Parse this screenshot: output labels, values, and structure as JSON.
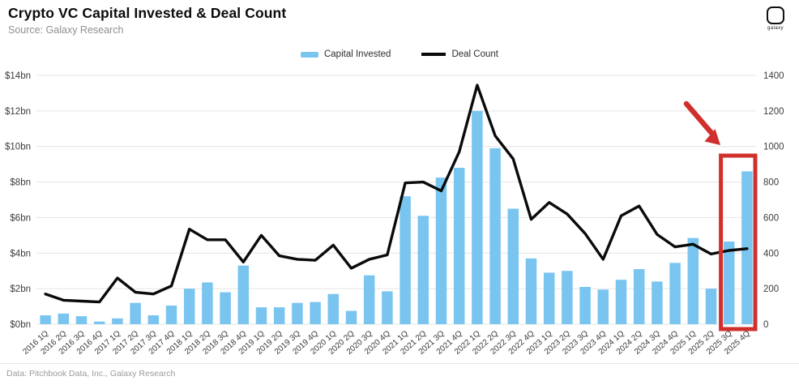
{
  "header": {
    "title": "Crypto VC Capital Invested & Deal Count",
    "source": "Source: Galaxy Research",
    "logo_text": "galaxy"
  },
  "legend": [
    {
      "label": "Capital Invested",
      "swatch": "bar",
      "color": "#79c5f0"
    },
    {
      "label": "Deal Count",
      "swatch": "line",
      "color": "#0a0a0a"
    }
  ],
  "footer": {
    "credit": "Data: Pitchbook Data, Inc., Galaxy Research"
  },
  "colors": {
    "bar": "#79c5f0",
    "line": "#0a0a0a",
    "grid": "#e4e4e4",
    "axis_text": "#3c3c3c",
    "annotation_red": "#d0302c"
  },
  "chart_data": {
    "type": "bar",
    "title": "Crypto VC Capital Invested & Deal Count",
    "categories": [
      "2016 1Q",
      "2016 2Q",
      "2016 3Q",
      "2016 4Q",
      "2017 1Q",
      "2017 2Q",
      "2017 3Q",
      "2017 4Q",
      "2018 1Q",
      "2018 2Q",
      "2018 3Q",
      "2018 4Q",
      "2019 1Q",
      "2019 2Q",
      "2019 3Q",
      "2019 4Q",
      "2020 1Q",
      "2020 2Q",
      "2020 3Q",
      "2020 4Q",
      "2021 1Q",
      "2021 2Q",
      "2021 3Q",
      "2021 4Q",
      "2022 1Q",
      "2022 2Q",
      "2022 3Q",
      "2022 4Q",
      "2023 1Q",
      "2023 2Q",
      "2023 3Q",
      "2023 4Q",
      "2024 1Q",
      "2024 2Q",
      "2024 3Q",
      "2024 4Q",
      "2025 1Q",
      "2025 2Q",
      "2025 3Q",
      "2025 4Q"
    ],
    "series": [
      {
        "name": "Capital Invested",
        "type": "bar",
        "axis": "left",
        "unit": "$bn",
        "color": "#79c5f0",
        "values": [
          0.5,
          0.6,
          0.45,
          0.15,
          0.33,
          1.2,
          0.5,
          1.05,
          2.0,
          2.35,
          1.8,
          3.3,
          0.95,
          0.95,
          1.2,
          1.25,
          1.7,
          0.75,
          2.75,
          1.85,
          7.2,
          6.1,
          8.25,
          8.8,
          12.0,
          9.9,
          6.5,
          3.7,
          2.9,
          3.0,
          2.1,
          1.95,
          2.5,
          3.1,
          2.4,
          3.45,
          4.85,
          2.0,
          4.65,
          8.6
        ]
      },
      {
        "name": "Deal Count",
        "type": "line",
        "axis": "right",
        "unit": "deals",
        "color": "#0a0a0a",
        "values": [
          170,
          135,
          130,
          125,
          260,
          180,
          170,
          215,
          535,
          475,
          475,
          350,
          500,
          385,
          365,
          360,
          445,
          315,
          365,
          390,
          795,
          800,
          750,
          970,
          1345,
          1060,
          930,
          590,
          685,
          620,
          510,
          365,
          610,
          665,
          505,
          435,
          450,
          395,
          415,
          425
        ]
      }
    ],
    "left_axis": {
      "ticks": [
        "$0bn",
        "$2bn",
        "$4bn",
        "$6bn",
        "$8bn",
        "$10bn",
        "$12bn",
        "$14bn"
      ],
      "min": 0,
      "max": 14
    },
    "right_axis": {
      "ticks": [
        "0",
        "200",
        "400",
        "600",
        "800",
        "1000",
        "1200",
        "1400"
      ],
      "min": 0,
      "max": 1400
    },
    "grid": true,
    "legend_position": "top-center",
    "annotation": {
      "type": "arrow-and-box",
      "highlight_categories": [
        "2025 3Q",
        "2025 4Q"
      ],
      "color": "#d0302c"
    }
  }
}
